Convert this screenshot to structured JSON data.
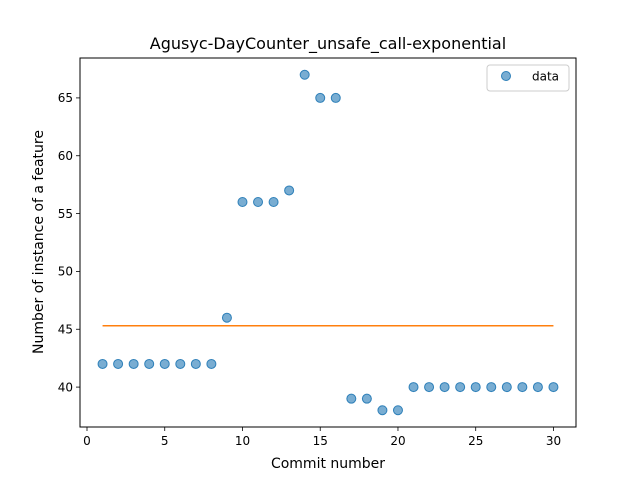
{
  "chart_data": {
    "type": "scatter",
    "title": "Agusyc-DayCounter_unsafe_call-exponential",
    "xlabel": "Commit number",
    "ylabel": "Number of instance of a feature",
    "xlim": [
      -0.45,
      31.45
    ],
    "ylim": [
      36.55,
      68.45
    ],
    "x_ticks": [
      0,
      5,
      10,
      15,
      20,
      25,
      30
    ],
    "y_ticks": [
      40,
      45,
      50,
      55,
      60,
      65
    ],
    "grid": false,
    "legend_position": "top-right",
    "series": [
      {
        "name": "data",
        "kind": "scatter",
        "color": "#1f77b4",
        "x": [
          1,
          2,
          3,
          4,
          5,
          6,
          7,
          8,
          9,
          10,
          11,
          12,
          13,
          14,
          15,
          16,
          17,
          18,
          19,
          20,
          21,
          22,
          23,
          24,
          25,
          26,
          27,
          28,
          29,
          30
        ],
        "y": [
          42,
          42,
          42,
          42,
          42,
          42,
          42,
          42,
          46,
          56,
          56,
          56,
          57,
          67,
          65,
          65,
          39,
          39,
          38,
          38,
          40,
          40,
          40,
          40,
          40,
          40,
          40,
          40,
          40,
          40
        ]
      },
      {
        "kind": "line",
        "color": "#ff7f0e",
        "x": [
          1,
          30
        ],
        "y": [
          45.3,
          45.3
        ]
      }
    ]
  }
}
